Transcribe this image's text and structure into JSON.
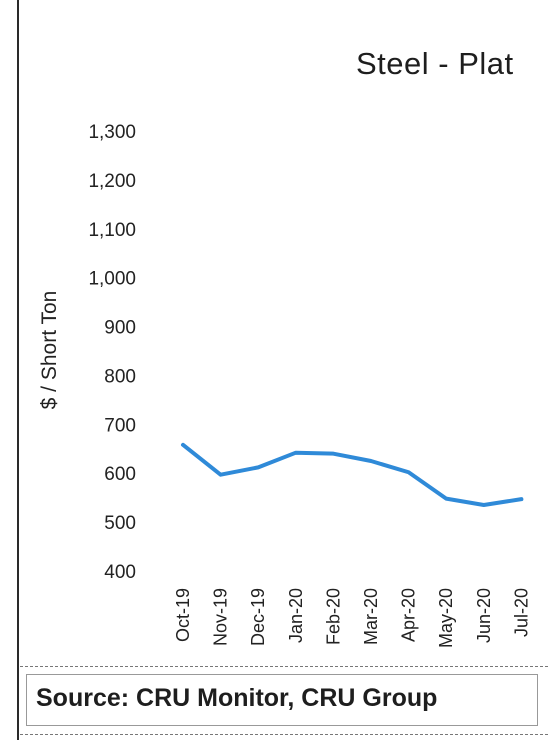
{
  "chart_data": {
    "type": "line",
    "title": "Steel - Plat",
    "ylabel": "$ / Short Ton",
    "xlabel": "",
    "ylim": [
      400,
      1300
    ],
    "yticks": [
      "1,300",
      "1,200",
      "1,100",
      "1,000",
      "900",
      "800",
      "700",
      "600",
      "500",
      "400"
    ],
    "ytick_values": [
      1300,
      1200,
      1100,
      1000,
      900,
      800,
      700,
      600,
      500,
      400
    ],
    "categories": [
      "Oct-19",
      "Nov-19",
      "Dec-19",
      "Jan-20",
      "Feb-20",
      "Mar-20",
      "Apr-20",
      "May-20",
      "Jun-20",
      "Jul-20"
    ],
    "x_tick_labels": [
      "Oct-19",
      "Nov-19",
      "Dec-19",
      "Jan-20",
      "Feb-20",
      "Mar-20",
      "Apr-20",
      "May-20",
      "Jun-20",
      "Jul-20"
    ],
    "series": [
      {
        "values": [
          658,
          597,
          612,
          642,
          640,
          625,
          602,
          548,
          535,
          547
        ],
        "color": "#2f8ad8"
      }
    ],
    "grid": false,
    "legend": "none"
  },
  "source": "Source:  CRU Monitor, CRU Group"
}
